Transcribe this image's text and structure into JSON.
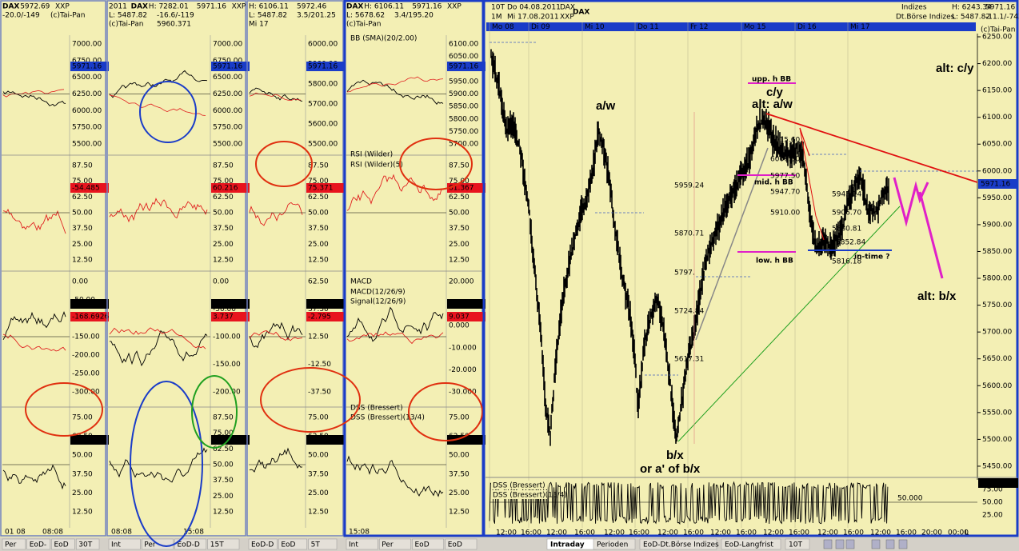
{
  "main": {
    "header": [
      "10T",
      "Do 04.08.2011",
      "DAX",
      "1M",
      "Mi 17.08.2011",
      "XXP",
      "DAX"
    ],
    "info": [
      "Indizes",
      "Dt.Börse Indizes",
      "H: 6243.34",
      "L: 5487.82",
      "5971.16",
      "-11.1/-743",
      "(c)Tai-Pan"
    ],
    "days": [
      "Mo 08",
      "Di 09",
      "Mi 10",
      "Do 11",
      "Fr 12",
      "Mo 15",
      "Di 16",
      "Mi 17"
    ],
    "price_axis": [
      "6250.00",
      "6200.00",
      "6150.00",
      "6100.00",
      "6050.00",
      "6000.00",
      "5950.00",
      "5900.00",
      "5850.00",
      "5800.00",
      "5750.00",
      "5700.00",
      "5650.00",
      "5600.00",
      "5550.00",
      "5500.00",
      "5450.00"
    ],
    "last_price": "5971.16",
    "annotations": [
      "a/w",
      "c/y",
      "alt: a/w",
      "alt: c/y",
      "b/x",
      "or a' of b/x",
      "alt: b/x",
      "upp. h BB",
      "mid. h BB",
      "low. h BB",
      "in-time ?"
    ],
    "levels": [
      "5959.24",
      "5870.71",
      "5797.",
      "5724.84",
      "5617.31",
      "6015.60",
      "6007.50",
      "5977.50",
      "5947.70",
      "5910.00",
      "5943.14",
      "5906.70",
      "5880.81",
      "5852.84",
      "5816.18"
    ],
    "time_axis": [
      "12:00",
      "16:00",
      "12:00",
      "16:00",
      "12:00",
      "16:00",
      "12:00",
      "16:00",
      "12:00",
      "16:00",
      "12:00",
      "16:00",
      "12:00",
      "16:00",
      "12:00",
      "16:00",
      "20:00",
      "00:00",
      "L"
    ],
    "dss": {
      "labels": [
        "DSS (Bressert)",
        "DSS (Bressert)(13/4)"
      ],
      "value": "-96.426",
      "level": "50.000",
      "ticks": [
        "75.00",
        "50.00",
        "25.00"
      ]
    }
  },
  "panels": [
    {
      "header": [
        "DAX",
        "5972.69",
        "XXP",
        "-20.0/-149",
        "(c)Tai-Pan"
      ],
      "axes": [
        [
          "7000.00",
          "6750.00",
          "6500.00",
          "6250.00",
          "6000.00",
          "5750.00",
          "5500.00"
        ],
        [
          "87.50",
          "75.00",
          "62.50",
          "50.00",
          "37.50",
          "25.00",
          "12.50"
        ],
        [
          "0.00",
          "-50.00",
          "-100.00",
          "-150.00",
          "-200.00",
          "-250.00",
          "-300.00"
        ],
        [
          "75.00",
          "62.50",
          "50.00",
          "37.50",
          "25.00",
          "12.50"
        ]
      ],
      "boxes": [
        [
          "5971.16"
        ],
        [
          "-54.485"
        ],
        [
          "-119.9362",
          "-168.6926"
        ],
        [
          "-87.439"
        ]
      ],
      "times": [
        "01 08",
        "08:08"
      ],
      "footer": [
        "Per",
        "EoD-",
        "EoD",
        "30T"
      ]
    },
    {
      "header": [
        "2011",
        "DAX",
        "H: 7282.01",
        "5971.16",
        "XXP",
        "L: 5487.82",
        "-16.6/-119",
        "(c)Tai-Pan",
        "5960.371"
      ],
      "axes": [
        [
          "7000.00",
          "6750.00",
          "6500.00",
          "6250.00",
          "6000.00",
          "5750.00",
          "5500.00"
        ],
        [
          "87.50",
          "75.00",
          "62.50",
          "50.00",
          "37.50",
          "25.00",
          "12.50"
        ],
        [
          "0.00",
          "-50.00",
          "-100.00",
          "-150.00",
          "-200.00"
        ],
        [
          "87.50",
          "75.00",
          "62.50",
          "50.00",
          "37.50",
          "25.00",
          "12.50"
        ]
      ],
      "boxes": [
        [
          "5971.16"
        ],
        [
          "60.216"
        ],
        [
          "4.453",
          "3.737"
        ],
        [
          "78.925"
        ]
      ],
      "times": [
        "08:08",
        "15:08"
      ],
      "footer": [
        "Int",
        "Per",
        "EoD-D",
        "15T"
      ]
    },
    {
      "header": [
        "H: 6106.11",
        "5972.46",
        "L: 5487.82",
        "3.5/201.25",
        "Mi 17"
      ],
      "axes": [
        [
          "6000.00",
          "5900.00",
          "5800.00",
          "5700.00",
          "5600.00",
          "5500.00"
        ],
        [
          "87.50",
          "75.00",
          "62.50",
          "50.00",
          "37.50",
          "25.00",
          "12.50"
        ],
        [
          "62.50",
          "37.50",
          "12.50",
          "-12.50",
          "-37.50"
        ],
        [
          "75.00",
          "62.50",
          "50.00",
          "37.50",
          "25.00",
          "12.50"
        ]
      ],
      "boxes": [
        [
          "5971.16"
        ],
        [
          "75.371"
        ],
        [
          "-7.570",
          "-2.795"
        ],
        [
          "-92.239"
        ]
      ],
      "times": [],
      "footer": [
        "EoD-D",
        "EoD",
        "5T"
      ]
    },
    {
      "header": [
        "DAX",
        "H: 6106.11",
        "5971.16",
        "XXP",
        "L: 5678.62",
        "3.4/195.20",
        "(c)Tai-Pan"
      ],
      "axes": [
        [
          "6100.00",
          "6050.00",
          "6000.00",
          "5950.00",
          "5900.00",
          "5850.00",
          "5800.00",
          "5750.00",
          "5700.00"
        ],
        [
          "87.50",
          "75.00",
          "62.50",
          "50.00",
          "37.50",
          "25.00",
          "12.50"
        ],
        [
          "20.000",
          "10.000",
          "0.000",
          "-10.000",
          "-20.000",
          "-30.000"
        ],
        [
          "75.00",
          "62.50",
          "50.00",
          "37.50",
          "25.00",
          "12.50"
        ]
      ],
      "boxes": [
        [
          "5971.16"
        ],
        [
          "61.367"
        ],
        [
          "11.619",
          "9.037"
        ],
        [
          "84.312"
        ]
      ],
      "times": [
        "15:08"
      ],
      "footer": [
        "Int",
        "Per",
        "EoD",
        "EoD"
      ],
      "indicators": [
        "BB (SMA)(20/2.00)",
        "RSI (Wilder)",
        "RSI (Wilder)(5)",
        "MACD",
        "MACD(12/26/9)",
        "Signal(12/26/9)",
        "DSS (Bressert)",
        "DSS (Bressert)(13/4)"
      ]
    }
  ],
  "tabs": [
    "Intraday",
    "Perioden",
    "EoD-Dt.Börse Indizes",
    "EoD-Langfrist",
    "10T"
  ]
}
